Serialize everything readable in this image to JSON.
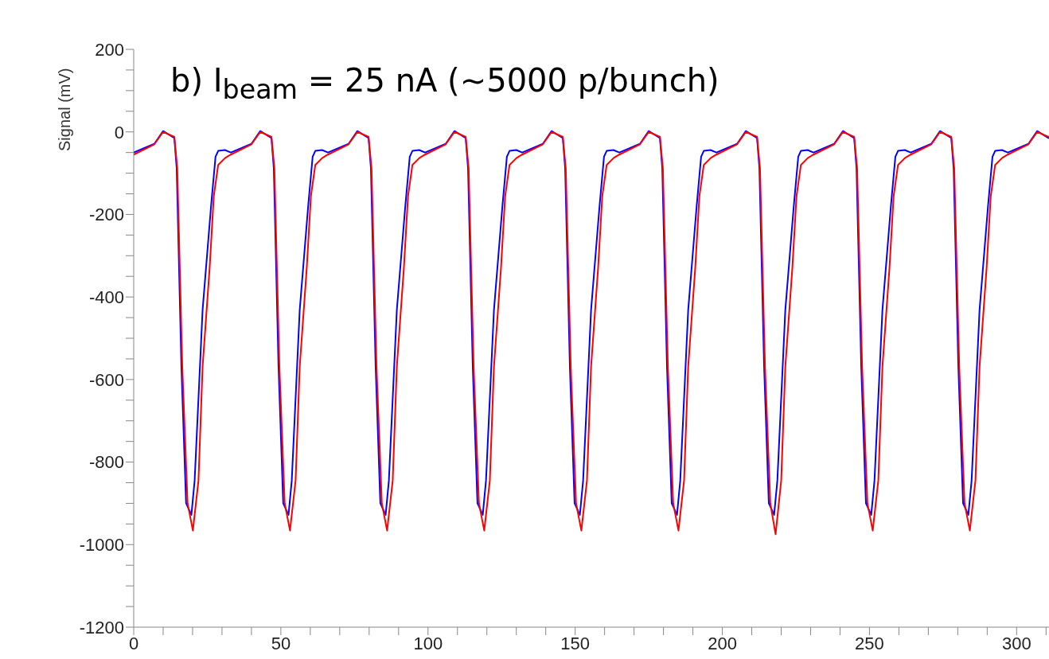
{
  "chart_data": {
    "type": "line",
    "title": "b) I$_{beam}$ = 25 nA (∼5000 p/bunch)",
    "ylabel": "Signal (mV)",
    "xlim": [
      0,
      311
    ],
    "ylim": [
      -1200,
      200
    ],
    "xticks": [
      0,
      {
        "value": 10,
        "label": null
      },
      {
        "value": 20,
        "label": null
      },
      {
        "value": 30,
        "label": null
      },
      {
        "value": 40,
        "label": null
      },
      50,
      {
        "value": 60,
        "label": null
      },
      {
        "value": 70,
        "label": null
      },
      {
        "value": 80,
        "label": null
      },
      {
        "value": 90,
        "label": null
      },
      100,
      {
        "value": 110,
        "label": null
      },
      {
        "value": 120,
        "label": null
      },
      {
        "value": 130,
        "label": null
      },
      {
        "value": 140,
        "label": null
      },
      150,
      {
        "value": 160,
        "label": null
      },
      {
        "value": 170,
        "label": null
      },
      {
        "value": 180,
        "label": null
      },
      {
        "value": 190,
        "label": null
      },
      200,
      {
        "value": 210,
        "label": null
      },
      {
        "value": 220,
        "label": null
      },
      {
        "value": 230,
        "label": null
      },
      {
        "value": 240,
        "label": null
      },
      250,
      {
        "value": 260,
        "label": null
      },
      {
        "value": 270,
        "label": null
      },
      {
        "value": 280,
        "label": null
      },
      {
        "value": 290,
        "label": null
      },
      300,
      {
        "value": 310,
        "label": null
      }
    ],
    "yticks": [
      -1200,
      {
        "value": -1150,
        "label": null
      },
      {
        "value": -1100,
        "label": null
      },
      {
        "value": -1050,
        "label": null
      },
      -1000,
      {
        "value": -950,
        "label": null
      },
      {
        "value": -900,
        "label": null
      },
      {
        "value": -850,
        "label": null
      },
      -800,
      {
        "value": -750,
        "label": null
      },
      {
        "value": -700,
        "label": null
      },
      {
        "value": -650,
        "label": null
      },
      -600,
      {
        "value": -550,
        "label": null
      },
      {
        "value": -500,
        "label": null
      },
      {
        "value": -450,
        "label": null
      },
      -400,
      {
        "value": -350,
        "label": null
      },
      {
        "value": -300,
        "label": null
      },
      {
        "value": -250,
        "label": null
      },
      -200,
      {
        "value": -150,
        "label": null
      },
      {
        "value": -100,
        "label": null
      },
      {
        "value": -50,
        "label": null
      },
      0,
      {
        "value": 50,
        "label": null
      },
      {
        "value": 100,
        "label": null
      },
      {
        "value": 150,
        "label": null
      },
      200
    ],
    "marker": "none",
    "line_style": "solid",
    "series": [
      {
        "color": "#0000ff",
        "x": [
          0,
          7,
          10,
          13.8,
          14.6,
          16.2,
          17.8,
          19.6,
          20.7,
          23.4,
          26.3,
          27.8,
          28.7,
          31,
          33,
          40,
          43,
          46.8,
          47.6,
          49.2,
          50.8,
          52.6,
          53.7,
          56.4,
          59.3,
          60.8,
          61.7,
          64,
          66,
          73,
          76,
          79.8,
          80.6,
          82.2,
          83.8,
          85.6,
          86.7,
          89.4,
          92.3,
          93.8,
          94.7,
          97,
          99,
          106,
          109,
          112.8,
          113.6,
          115.2,
          116.8,
          118.6,
          119.7,
          122.4,
          125.3,
          126.8,
          127.7,
          130,
          132,
          139,
          142,
          145.8,
          146.6,
          148.2,
          149.8,
          151.6,
          152.7,
          155.4,
          158.3,
          159.8,
          160.7,
          163,
          165,
          172,
          175,
          178.8,
          179.6,
          181.2,
          182.8,
          184.6,
          185.7,
          188.4,
          191.3,
          192.8,
          193.7,
          196,
          198,
          205,
          208,
          211.8,
          212.6,
          214.2,
          215.8,
          217.6,
          218.7,
          221.4,
          224.3,
          225.8,
          226.7,
          229,
          231,
          238,
          241,
          244.8,
          245.6,
          247.2,
          248.8,
          250.6,
          251.7,
          254.4,
          257.3,
          258.8,
          259.7,
          262,
          264,
          271,
          274,
          277.8,
          278.6,
          280.2,
          281.8,
          283.6,
          284.7,
          287.4,
          290.3,
          291.8,
          292.7,
          295,
          297,
          304,
          307,
          310.8
        ],
        "values": [
          -50,
          -29,
          2,
          -15,
          -88,
          -569,
          -900,
          -928,
          -845,
          -432,
          -178,
          -60,
          -46,
          -44,
          -50,
          -29,
          2,
          -15,
          -88,
          -569,
          -900,
          -928,
          -845,
          -432,
          -178,
          -60,
          -46,
          -44,
          -50,
          -29,
          2,
          -15,
          -88,
          -569,
          -900,
          -928,
          -845,
          -432,
          -178,
          -60,
          -46,
          -44,
          -50,
          -29,
          2,
          -15,
          -88,
          -569,
          -900,
          -928,
          -845,
          -432,
          -178,
          -60,
          -46,
          -44,
          -50,
          -29,
          2,
          -15,
          -88,
          -569,
          -900,
          -928,
          -845,
          -432,
          -178,
          -60,
          -46,
          -44,
          -50,
          -29,
          2,
          -15,
          -88,
          -569,
          -900,
          -928,
          -845,
          -432,
          -178,
          -60,
          -46,
          -44,
          -50,
          -29,
          2,
          -15,
          -88,
          -569,
          -900,
          -928,
          -845,
          -432,
          -178,
          -60,
          -46,
          -44,
          -50,
          -29,
          2,
          -15,
          -88,
          -569,
          -900,
          -928,
          -845,
          -432,
          -178,
          -60,
          -46,
          -44,
          -50,
          -29,
          2,
          -15,
          -88,
          -569,
          -900,
          -928,
          -845,
          -432,
          -178,
          -60,
          -46,
          -44,
          -50,
          -29,
          2,
          -15
        ]
      },
      {
        "color": "#ff0000",
        "x": [
          0,
          7,
          10,
          13.8,
          14.8,
          16.5,
          18.3,
          20.1,
          22,
          23.4,
          25.8,
          27.2,
          28.7,
          31.1,
          33,
          40,
          43,
          46.8,
          47.8,
          49.5,
          51.3,
          53.1,
          55,
          56.4,
          58.8,
          60.2,
          61.7,
          64.1,
          66,
          73,
          76,
          79.8,
          80.8,
          82.5,
          84.3,
          86.1,
          88,
          89.4,
          91.8,
          93.2,
          94.7,
          97.1,
          99,
          106,
          109,
          112.8,
          113.8,
          115.5,
          117.3,
          119.1,
          121,
          122.4,
          124.8,
          126.2,
          127.7,
          130.1,
          132,
          139,
          142,
          145.8,
          146.8,
          148.5,
          150.3,
          152.1,
          154,
          155.4,
          157.8,
          159.2,
          160.7,
          163.1,
          165,
          172,
          175,
          178.8,
          179.8,
          181.5,
          183.3,
          185.1,
          187,
          188.4,
          190.8,
          192.2,
          193.7,
          196.1,
          198,
          205,
          208,
          211.8,
          212.8,
          214.5,
          216.3,
          218.1,
          220,
          221.4,
          223.8,
          225.2,
          226.7,
          229.1,
          231,
          238,
          241,
          244.8,
          245.8,
          247.5,
          249.3,
          251.1,
          253,
          254.4,
          256.8,
          258.2,
          259.7,
          262.1,
          264,
          271,
          274,
          277.8,
          278.8,
          280.5,
          282.3,
          284.1,
          286,
          287.4,
          289.8,
          291.2,
          292.7,
          295.1,
          297,
          304,
          307,
          310.8
        ],
        "values": [
          -55,
          -30,
          0,
          -12,
          -88,
          -569,
          -900,
          -966,
          -845,
          -569,
          -329,
          -156,
          -80,
          -63,
          -55,
          -30,
          0,
          -12,
          -88,
          -569,
          -900,
          -966,
          -845,
          -569,
          -329,
          -156,
          -80,
          -63,
          -55,
          -30,
          0,
          -12,
          -88,
          -569,
          -900,
          -966,
          -845,
          -569,
          -329,
          -156,
          -80,
          -63,
          -55,
          -30,
          0,
          -12,
          -88,
          -569,
          -900,
          -966,
          -845,
          -569,
          -329,
          -156,
          -80,
          -63,
          -55,
          -30,
          0,
          -12,
          -88,
          -569,
          -900,
          -966,
          -845,
          -569,
          -329,
          -156,
          -80,
          -63,
          -55,
          -30,
          0,
          -12,
          -88,
          -569,
          -900,
          -966,
          -845,
          -569,
          -329,
          -156,
          -80,
          -63,
          -55,
          -30,
          0,
          -12,
          -88,
          -569,
          -900,
          -975,
          -845,
          -569,
          -329,
          -156,
          -80,
          -63,
          -55,
          -30,
          0,
          -12,
          -88,
          -569,
          -900,
          -966,
          -845,
          -569,
          -329,
          -156,
          -80,
          -63,
          -55,
          -30,
          0,
          -12,
          -88,
          -569,
          -900,
          -966,
          -845,
          -569,
          -329,
          -156,
          -80,
          -63,
          -55,
          -30,
          0,
          -12
        ]
      }
    ]
  }
}
